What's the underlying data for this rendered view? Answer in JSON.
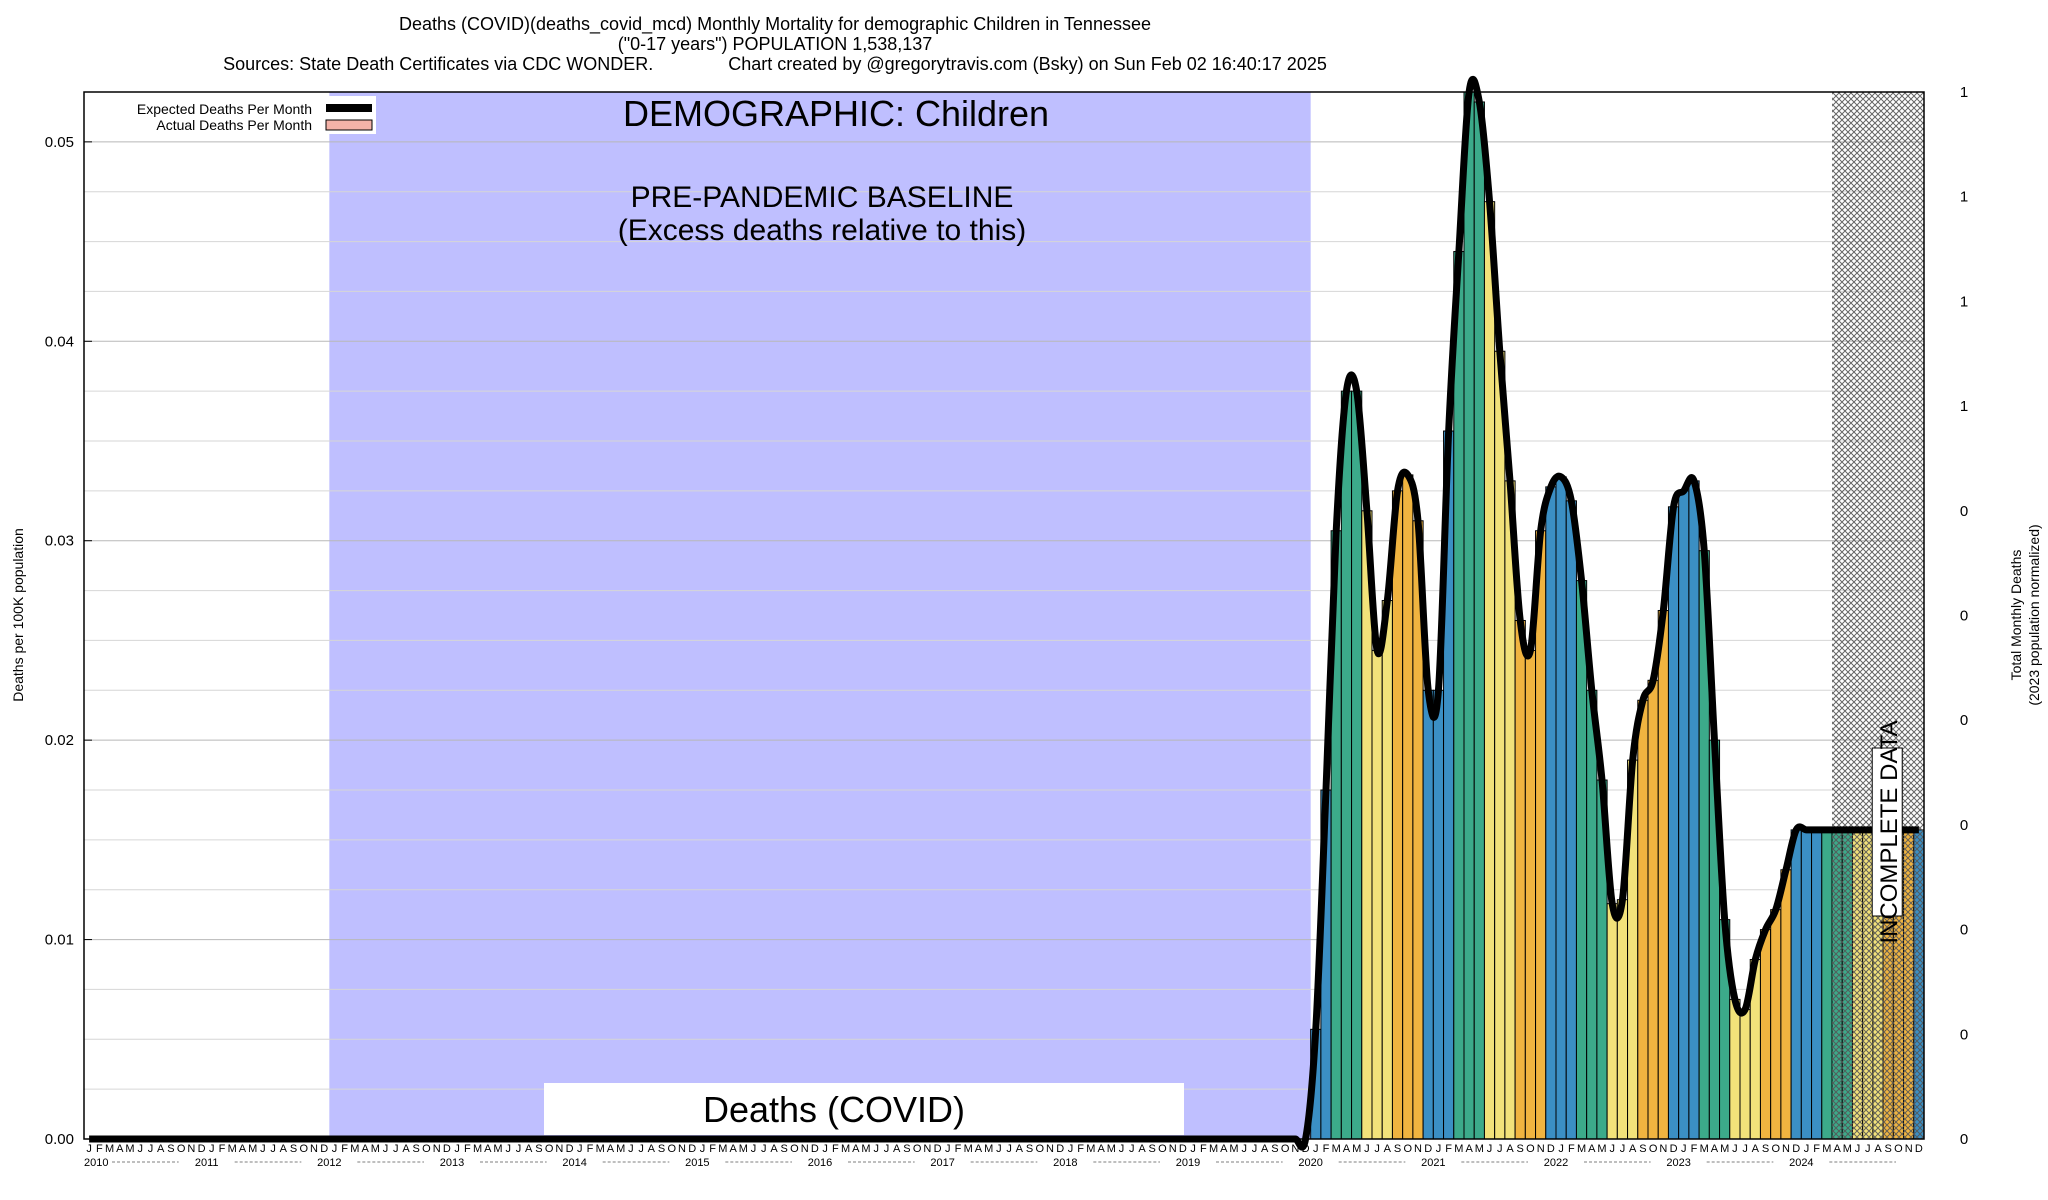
{
  "header": {
    "line1": "Deaths (COVID)(deaths_covid_mcd) Monthly Mortality for demographic Children in Tennessee",
    "line2": "(\"0-17 years\") POPULATION 1,538,137",
    "line3": "Sources: State Death Certificates via CDC WONDER.               Chart created by @gregorytravis.com (Bsky) on Sun Feb 02 16:40:17 2025"
  },
  "legend": {
    "expected": "Expected Deaths Per Month",
    "actual": "Actual Deaths Per Month"
  },
  "annotations": {
    "demographic": "DEMOGRAPHIC: Children",
    "baseline_line1": "PRE-PANDEMIC BASELINE",
    "baseline_line2": "(Excess deaths relative to this)",
    "cause": "Deaths (COVID)",
    "incomplete": "INCOMPLETE DATA"
  },
  "colors": {
    "baseline_band": "#bfbfff",
    "incomplete_hatch": "#555555",
    "bar_palette": [
      "#3b8fc4",
      "#3caa8a",
      "#f2e27a",
      "#f0b440"
    ],
    "expected_line": "#000000",
    "actual_legend": "#f4b2a8"
  },
  "chart_data": {
    "type": "bar",
    "ylabel": "Deaths per 100K population",
    "ylabel_right": "Total Monthly Deaths",
    "ylabel_right_sub": "(2023 population normalized)",
    "ylim": [
      0,
      0.0525
    ],
    "y_ticks": [
      "0.00",
      "0.01",
      "0.02",
      "0.03",
      "0.04",
      "0.05"
    ],
    "right_ticks": [
      "0",
      "0",
      "0",
      "0",
      "0",
      "0",
      "0",
      "1",
      "1",
      "1",
      "1"
    ],
    "grid": true,
    "legend_position": "top-left",
    "x_start": "2010-01",
    "x_end": "2024-12",
    "month_letters": [
      "J",
      "F",
      "M",
      "A",
      "M",
      "J",
      "J",
      "A",
      "S",
      "O",
      "N",
      "D"
    ],
    "years": [
      "2010",
      "2011",
      "2012",
      "2013",
      "2014",
      "2015",
      "2016",
      "2017",
      "2018",
      "2019",
      "2020",
      "2021",
      "2022",
      "2023",
      "2024"
    ],
    "baseline_period": [
      "2012-01",
      "2019-12"
    ],
    "incomplete_period": [
      "2024-04",
      "2024-12"
    ],
    "pre_2020_value": 0,
    "actual_deaths_per_100k": {
      "months": [
        "2020-01",
        "2020-02",
        "2020-03",
        "2020-04",
        "2020-05",
        "2020-06",
        "2020-07",
        "2020-08",
        "2020-09",
        "2020-10",
        "2020-11",
        "2020-12",
        "2021-01",
        "2021-02",
        "2021-03",
        "2021-04",
        "2021-05",
        "2021-06",
        "2021-07",
        "2021-08",
        "2021-09",
        "2021-10",
        "2021-11",
        "2021-12",
        "2022-01",
        "2022-02",
        "2022-03",
        "2022-04",
        "2022-05",
        "2022-06",
        "2022-07",
        "2022-08",
        "2022-09",
        "2022-10",
        "2022-11",
        "2022-12",
        "2023-01",
        "2023-02",
        "2023-03",
        "2023-04",
        "2023-05",
        "2023-06",
        "2023-07",
        "2023-08",
        "2023-09",
        "2023-10",
        "2023-11",
        "2023-12",
        "2024-01",
        "2024-02",
        "2024-03",
        "2024-04",
        "2024-05",
        "2024-06",
        "2024-07",
        "2024-08",
        "2024-09",
        "2024-10",
        "2024-11",
        "2024-12"
      ],
      "values": [
        0.0055,
        0.0175,
        0.0305,
        0.0375,
        0.0375,
        0.0315,
        0.0245,
        0.027,
        0.0325,
        0.0333,
        0.031,
        0.0225,
        0.0225,
        0.0355,
        0.0445,
        0.0525,
        0.052,
        0.047,
        0.0395,
        0.033,
        0.026,
        0.0245,
        0.0305,
        0.0327,
        0.0332,
        0.032,
        0.028,
        0.0225,
        0.018,
        0.0118,
        0.012,
        0.019,
        0.022,
        0.023,
        0.0265,
        0.0317,
        0.0325,
        0.033,
        0.0295,
        0.02,
        0.011,
        0.007,
        0.0065,
        0.009,
        0.0105,
        0.0115,
        0.0135,
        0.0155,
        0.0155,
        0.0155,
        0.0155,
        0.0155,
        0.0155,
        0.0155,
        0.0155,
        0.0155,
        0.0155,
        0.0155,
        0.0155,
        0.0155
      ]
    }
  }
}
